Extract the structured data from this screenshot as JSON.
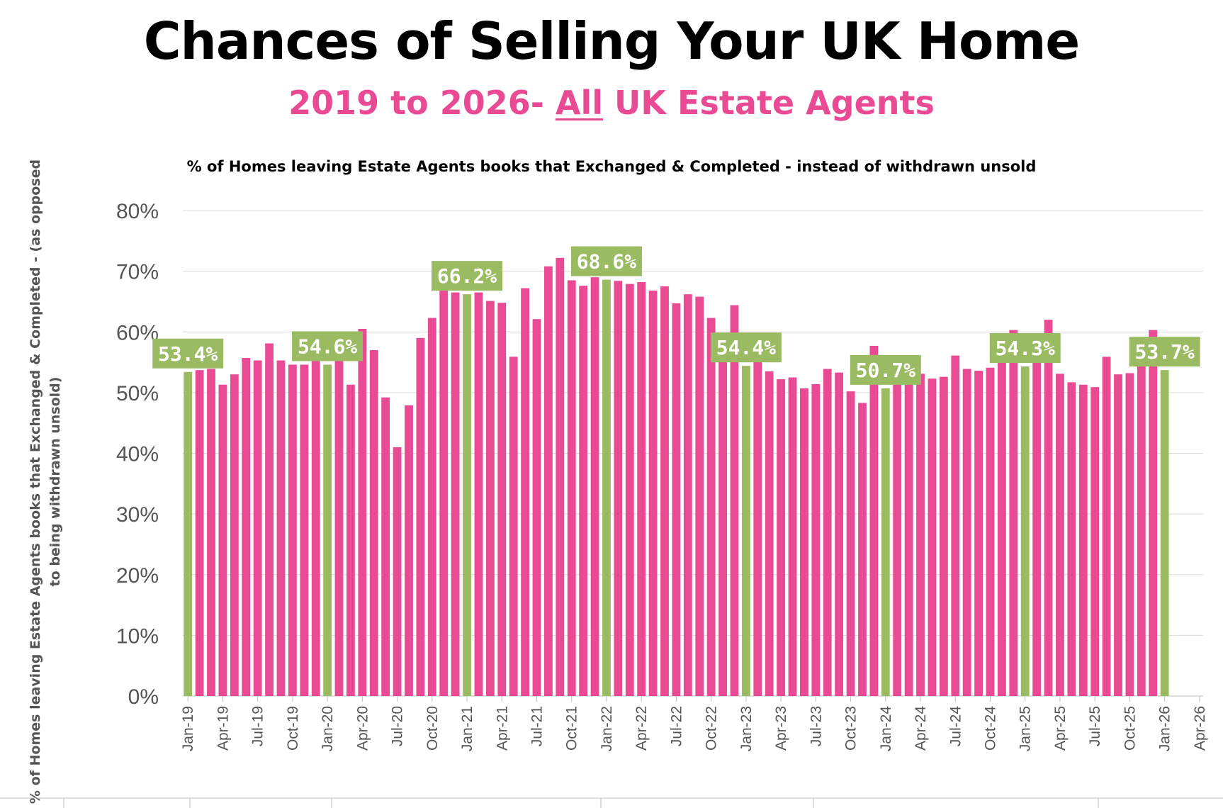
{
  "chart_data": {
    "type": "bar",
    "title": "Chances of Selling Your UK Home",
    "subtitle_parts": {
      "before": "2019 to 2026- ",
      "underlined": "All",
      "after": " UK Estate Agents"
    },
    "inner_title": "% of Homes leaving Estate Agents books that Exchanged & Completed - instead of withdrawn unsold",
    "ylabel_lines": [
      "% of Homes leaving Estate Agents books that Exchanged & Completed - (as opposed",
      "to being withdrawn unsold)"
    ],
    "xlabel": "",
    "ylim": [
      0,
      80
    ],
    "yticks": [
      "0%",
      "10%",
      "20%",
      "30%",
      "40%",
      "50%",
      "60%",
      "70%",
      "80%"
    ],
    "xticks": [
      "Jan-19",
      "Apr-19",
      "Jul-19",
      "Oct-19",
      "Jan-20",
      "Apr-20",
      "Jul-20",
      "Oct-20",
      "Jan-21",
      "Apr-21",
      "Jul-21",
      "Oct-21",
      "Jan-22",
      "Apr-22",
      "Jul-22",
      "Oct-22",
      "Jan-23",
      "Apr-23",
      "Jul-23",
      "Oct-23",
      "Jan-24",
      "Apr-24",
      "Jul-24",
      "Oct-24",
      "Jan-25",
      "Apr-25",
      "Jul-25",
      "Oct-25",
      "Jan-26",
      "Apr-26"
    ],
    "grid": true,
    "legend": "none",
    "colors": {
      "regular": "#e84b94",
      "january": "#9bbb63",
      "label_bg": "#9bbb63",
      "grid": "#d9d9d9"
    },
    "categories": [
      "Jan-19",
      "Feb-19",
      "Mar-19",
      "Apr-19",
      "May-19",
      "Jun-19",
      "Jul-19",
      "Aug-19",
      "Sep-19",
      "Oct-19",
      "Nov-19",
      "Dec-19",
      "Jan-20",
      "Feb-20",
      "Mar-20",
      "Apr-20",
      "May-20",
      "Jun-20",
      "Jul-20",
      "Aug-20",
      "Sep-20",
      "Oct-20",
      "Nov-20",
      "Dec-20",
      "Jan-21",
      "Feb-21",
      "Mar-21",
      "Apr-21",
      "May-21",
      "Jun-21",
      "Jul-21",
      "Aug-21",
      "Sep-21",
      "Oct-21",
      "Nov-21",
      "Dec-21",
      "Jan-22",
      "Feb-22",
      "Mar-22",
      "Apr-22",
      "May-22",
      "Jun-22",
      "Jul-22",
      "Aug-22",
      "Sep-22",
      "Oct-22",
      "Nov-22",
      "Dec-22",
      "Jan-23",
      "Feb-23",
      "Mar-23",
      "Apr-23",
      "May-23",
      "Jun-23",
      "Jul-23",
      "Aug-23",
      "Sep-23",
      "Oct-23",
      "Nov-23",
      "Dec-23",
      "Jan-24",
      "Feb-24",
      "Mar-24",
      "Apr-24",
      "May-24",
      "Jun-24",
      "Jul-24",
      "Aug-24",
      "Sep-24",
      "Oct-24",
      "Nov-24",
      "Dec-24",
      "Jan-25",
      "Feb-25",
      "Mar-25",
      "Apr-25",
      "May-25",
      "Jun-25",
      "Jul-25",
      "Aug-25",
      "Sep-25",
      "Oct-25",
      "Nov-25",
      "Dec-25",
      "Jan-26"
    ],
    "values": [
      53.4,
      53.7,
      53.9,
      51.3,
      53.0,
      55.7,
      55.3,
      58.1,
      55.3,
      54.6,
      54.6,
      55.4,
      54.6,
      55.8,
      51.3,
      60.5,
      57.0,
      49.2,
      41.0,
      47.9,
      59.0,
      62.3,
      67.0,
      66.5,
      66.2,
      66.5,
      65.1,
      64.8,
      55.9,
      67.2,
      62.1,
      70.8,
      72.2,
      68.5,
      67.6,
      69.0,
      68.6,
      68.4,
      67.9,
      68.2,
      66.8,
      67.5,
      64.7,
      66.2,
      65.8,
      62.3,
      55.9,
      64.4,
      54.4,
      55.7,
      53.5,
      52.2,
      52.5,
      50.7,
      51.4,
      53.9,
      53.3,
      50.2,
      48.3,
      57.7,
      50.7,
      51.6,
      51.6,
      53.1,
      52.3,
      52.6,
      56.1,
      53.9,
      53.6,
      54.1,
      56.0,
      60.3,
      54.3,
      56.7,
      62.0,
      53.1,
      51.7,
      51.3,
      50.9,
      55.9,
      53.0,
      53.2,
      55.1,
      60.3,
      53.7
    ],
    "data_labels": [
      {
        "category": "Jan-19",
        "text": "53.4%"
      },
      {
        "category": "Jan-20",
        "text": "54.6%"
      },
      {
        "category": "Jan-21",
        "text": "66.2%"
      },
      {
        "category": "Jan-22",
        "text": "68.6%"
      },
      {
        "category": "Jan-23",
        "text": "54.4%"
      },
      {
        "category": "Jan-24",
        "text": "50.7%"
      },
      {
        "category": "Jan-25",
        "text": "54.3%"
      },
      {
        "category": "Jan-26",
        "text": "53.7%"
      }
    ]
  }
}
